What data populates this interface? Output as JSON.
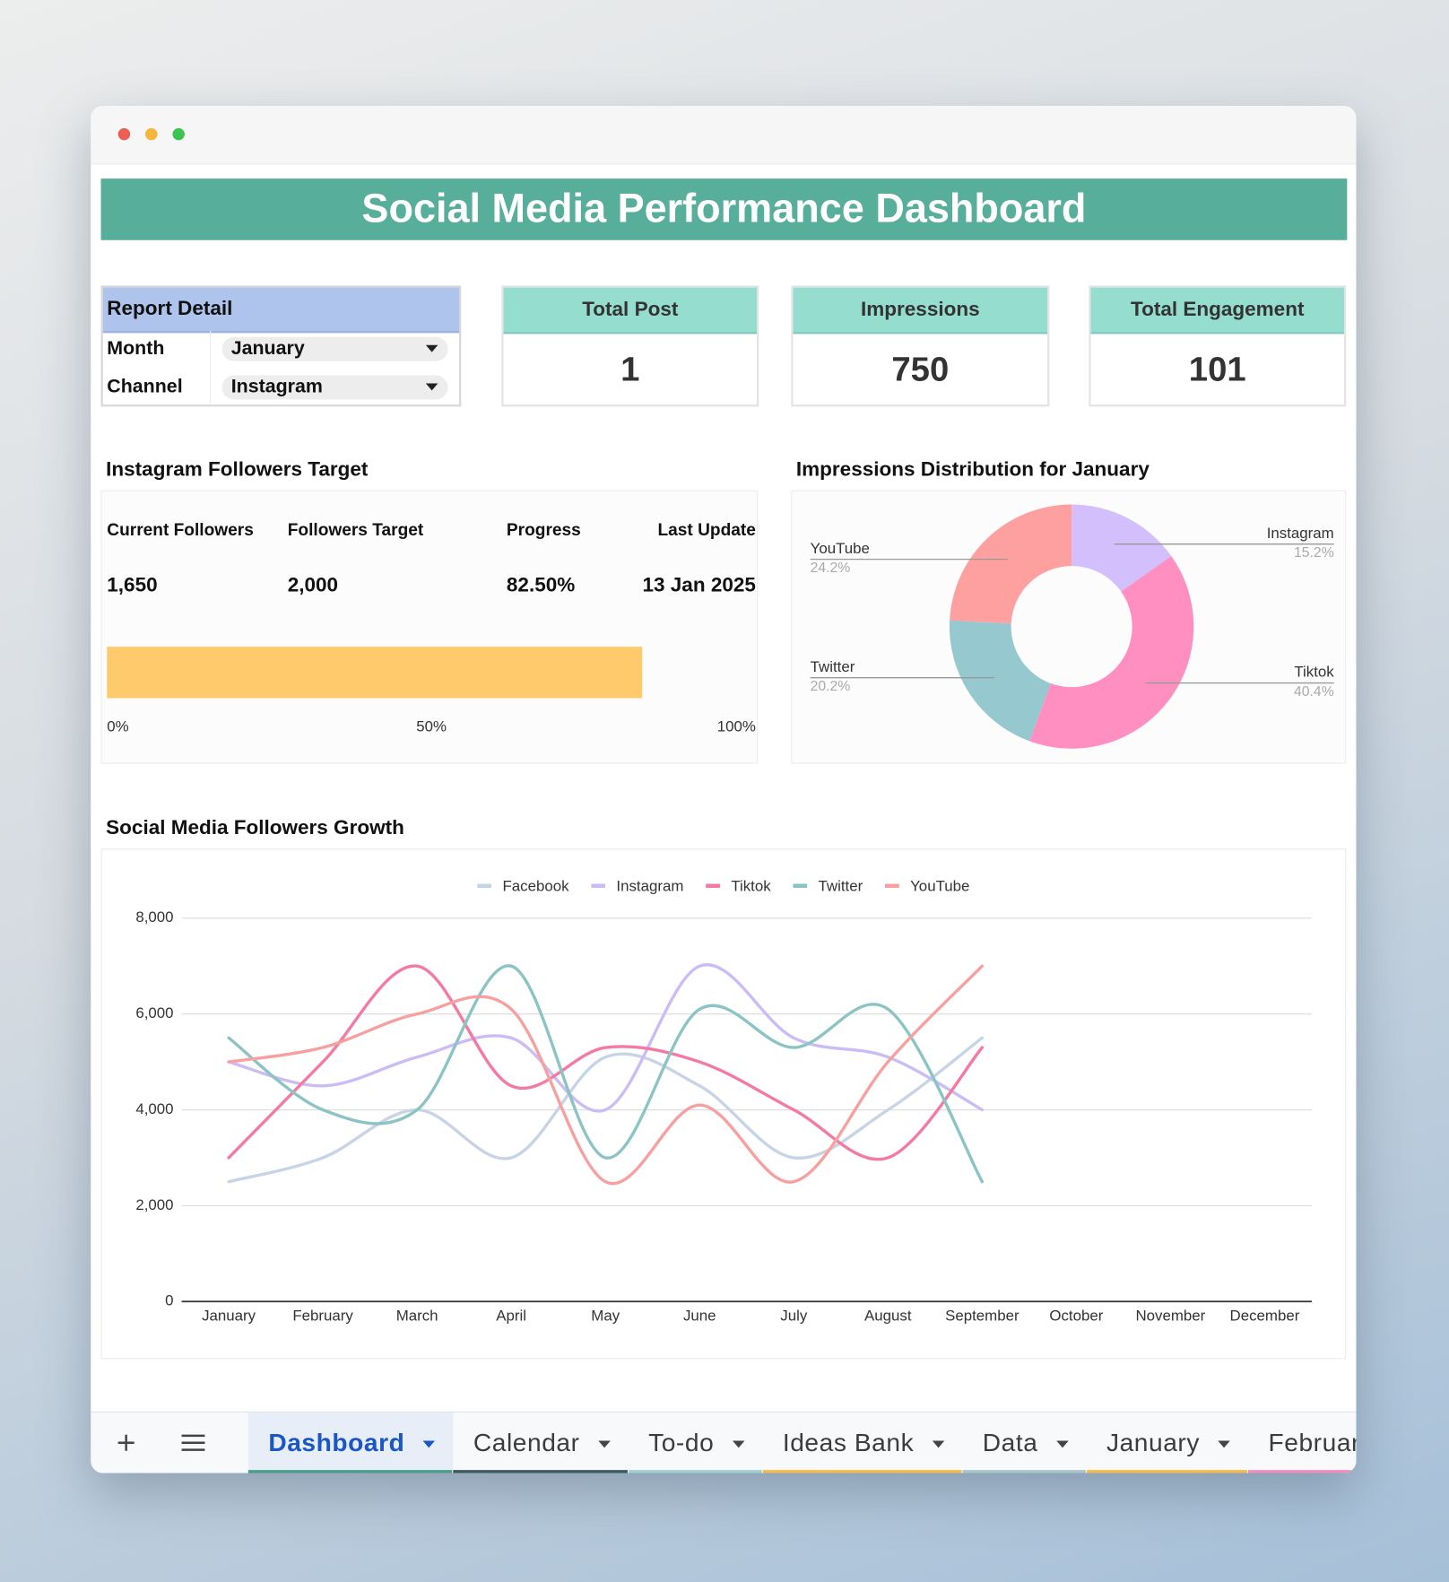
{
  "header": {
    "title": "Social Media Performance Dashboard"
  },
  "report_detail": {
    "title": "Report Detail",
    "fields": [
      {
        "label": "Month",
        "value": "January"
      },
      {
        "label": "Channel",
        "value": "Instagram"
      }
    ]
  },
  "kpis": [
    {
      "label": "Total Post",
      "value": 1
    },
    {
      "label": "Impressions",
      "value": 750
    },
    {
      "label": "Total Engagement",
      "value": 101
    }
  ],
  "followers_target": {
    "title": "Instagram Followers Target",
    "columns": [
      {
        "label": "Current Followers",
        "value": "1,650"
      },
      {
        "label": "Followers Target",
        "value": "2,000"
      },
      {
        "label": "Progress",
        "value": {
          "value": 82.5,
          "label": "82.50%"
        }
      },
      {
        "label": "Last Update",
        "value": "13 Jan 2025"
      }
    ],
    "bar_color": "#ffca6b",
    "xlim": [
      0,
      100
    ],
    "xticks": [
      {
        "value": 0,
        "label": "0%"
      },
      {
        "value": 50,
        "label": "50%"
      },
      {
        "value": 100,
        "label": "100%"
      }
    ]
  },
  "chart_data": [
    {
      "type": "pie",
      "donut": true,
      "title": "Impressions Distribution for January",
      "categories": [
        "Instagram",
        "Tiktok",
        "Twitter",
        "YouTube"
      ],
      "values": [
        15.2,
        40.4,
        20.2,
        24.2
      ],
      "value_labels": [
        "15.2%",
        "40.4%",
        "20.2%",
        "24.2%"
      ],
      "colors": [
        "#d2bffc",
        "#ff8fc0",
        "#96c8d0",
        "#ffa0a0"
      ]
    },
    {
      "type": "line",
      "title": "Social Media Followers Growth",
      "categories": [
        "January",
        "February",
        "March",
        "April",
        "May",
        "June",
        "July",
        "August",
        "September",
        "October",
        "November",
        "December"
      ],
      "series": [
        {
          "name": "Facebook",
          "color": "#c7d3e6",
          "values": [
            2500,
            3000,
            4000,
            3000,
            5100,
            4500,
            3000,
            4000,
            5500,
            null,
            null,
            null
          ]
        },
        {
          "name": "Instagram",
          "color": "#cbbcf6",
          "values": [
            5000,
            4500,
            5100,
            5500,
            4000,
            7000,
            5500,
            5100,
            4000,
            null,
            null,
            null
          ]
        },
        {
          "name": "Tiktok",
          "color": "#f47aa2",
          "values": [
            3000,
            5000,
            7000,
            4500,
            5300,
            5000,
            4000,
            3000,
            5300,
            null,
            null,
            null
          ]
        },
        {
          "name": "Twitter",
          "color": "#8cc3c5",
          "values": [
            5500,
            4000,
            4000,
            7000,
            3000,
            6100,
            5300,
            6100,
            2500,
            null,
            null,
            null
          ]
        },
        {
          "name": "YouTube",
          "color": "#f7a0a0",
          "values": [
            5000,
            5300,
            6000,
            6100,
            2500,
            4100,
            2500,
            5000,
            7000,
            null,
            null,
            null
          ]
        }
      ],
      "ylim": [
        0,
        8000
      ],
      "yticks": [
        0,
        {
          "value": 2000,
          "label": "2,000"
        },
        {
          "value": 4000,
          "label": "4,000"
        },
        {
          "value": 6000,
          "label": "6,000"
        },
        {
          "value": 8000,
          "label": "8,000"
        }
      ],
      "grid": true,
      "legend": "top"
    }
  ],
  "tabs": [
    {
      "label": "Dashboard",
      "color": "#4a9e88"
    },
    {
      "label": "Calendar",
      "color": "#3d5a60"
    },
    {
      "label": "To-do",
      "color": "#9dd0cf"
    },
    {
      "label": "Ideas Bank",
      "color": "#f6b94c"
    },
    {
      "label": "Data",
      "color": "#a9c5c9"
    },
    {
      "label": "January",
      "color": "#f6b94c"
    },
    {
      "label": "February",
      "color": "#f08cc0"
    }
  ],
  "active_tab": 0
}
